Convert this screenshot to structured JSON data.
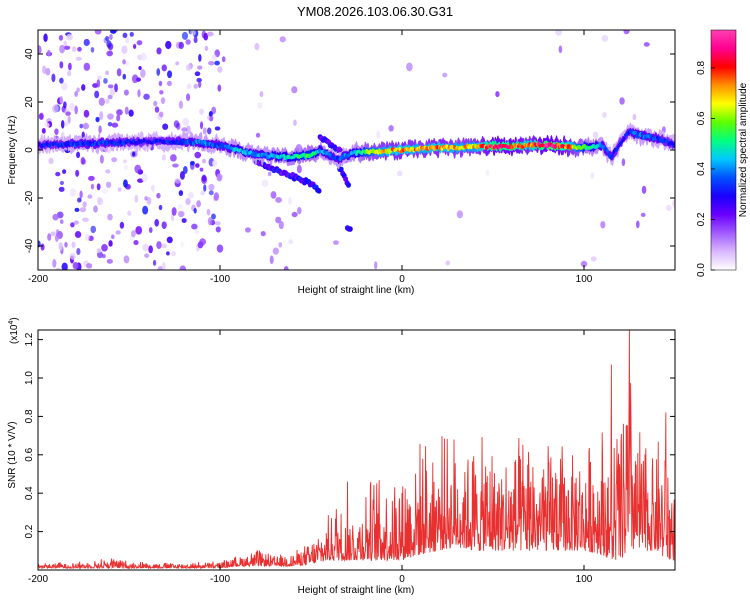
{
  "title": "YM08.2026.103.06.30.G31",
  "colors": {
    "snr_line": "#e83030",
    "colorbar_stops": [
      "#ffffff",
      "#d9b8ff",
      "#a15cff",
      "#6a00ff",
      "#1a00ff",
      "#0050ff",
      "#00c8ff",
      "#00ff80",
      "#5cff00",
      "#ffff00",
      "#ff9000",
      "#ff0000",
      "#ff0090",
      "#ff40b0"
    ]
  },
  "chart_data": [
    {
      "type": "heatmap",
      "title": "YM08.2026.103.06.30.G31",
      "xlabel": "Height of straight line (km)",
      "ylabel": "Frequency (Hz)",
      "xlim": [
        -200,
        150
      ],
      "ylim": [
        -50,
        50
      ],
      "xticks": [
        -200,
        -100,
        0,
        100
      ],
      "yticks": [
        -40,
        -20,
        0,
        20,
        40
      ],
      "colorbar": {
        "label": "Normalized spectral amplitude",
        "range": [
          0,
          0.95
        ],
        "ticks": [
          "0.0",
          "0.2",
          "0.4",
          "0.6",
          "0.8"
        ]
      },
      "ridge": {
        "description": "main spectral ridge: frequency (Hz) vs height (km)",
        "x": [
          -200,
          -180,
          -160,
          -140,
          -120,
          -110,
          -100,
          -90,
          -80,
          -70,
          -60,
          -50,
          -45,
          -40,
          -35,
          -30,
          -25,
          -20,
          -10,
          0,
          10,
          20,
          30,
          40,
          50,
          60,
          70,
          80,
          90,
          100,
          110,
          115,
          120,
          125,
          130,
          140,
          150
        ],
        "y": [
          2,
          2.5,
          3,
          3.5,
          3.5,
          3,
          2,
          0,
          -2,
          -2.5,
          -3,
          -2,
          0,
          -2,
          -4,
          -2,
          -1,
          -1,
          -0.5,
          0,
          0.5,
          1,
          1,
          1.5,
          1.5,
          1.5,
          2,
          2,
          1.5,
          1,
          2,
          -3,
          3,
          8,
          6,
          5,
          2
        ],
        "amplitude": [
          0.3,
          0.35,
          0.35,
          0.3,
          0.35,
          0.4,
          0.35,
          0.45,
          0.4,
          0.45,
          0.5,
          0.55,
          0.45,
          0.4,
          0.35,
          0.4,
          0.45,
          0.6,
          0.7,
          0.75,
          0.7,
          0.75,
          0.7,
          0.7,
          0.85,
          0.85,
          0.75,
          0.9,
          0.8,
          0.55,
          0.4,
          0.35,
          0.3,
          0.35,
          0.4,
          0.35,
          0.3
        ]
      },
      "side_branches": [
        {
          "x": [
            -80,
            -70,
            -60,
            -50,
            -45
          ],
          "y": [
            -5,
            -8,
            -11,
            -14,
            -17
          ]
        },
        {
          "x": [
            -45,
            -40,
            -35,
            -30
          ],
          "y": [
            5,
            3,
            0,
            -4
          ]
        },
        {
          "x": [
            -35,
            -32,
            -29
          ],
          "y": [
            -6,
            -11,
            -15
          ]
        },
        {
          "x": [
            -30,
            -28
          ],
          "y": [
            -32,
            -34
          ]
        }
      ]
    },
    {
      "type": "line",
      "xlabel": "Height of straight line (km)",
      "ylabel": "SNR (10 * V/V)",
      "y_multiplier": "(x10",
      "y_multiplier_exp": "4",
      "y_multiplier_close": ")",
      "xlim": [
        -200,
        150
      ],
      "ylim": [
        0,
        1.25
      ],
      "xticks": [
        -200,
        -100,
        0,
        100
      ],
      "yticks": [
        "0.2",
        "0.4",
        "0.6",
        "0.8",
        "1.0",
        "1.2"
      ],
      "series": [
        {
          "name": "SNR",
          "envelope_x": [
            -200,
            -170,
            -160,
            -150,
            -120,
            -100,
            -90,
            -80,
            -70,
            -60,
            -50,
            -40,
            -35,
            -30,
            -25,
            -20,
            -10,
            0,
            10,
            20,
            30,
            40,
            50,
            60,
            70,
            80,
            90,
            100,
            110,
            115,
            120,
            125,
            130,
            135,
            140,
            145,
            150
          ],
          "envelope_max": [
            0.04,
            0.05,
            0.08,
            0.05,
            0.04,
            0.05,
            0.08,
            0.12,
            0.08,
            0.1,
            0.16,
            0.3,
            0.45,
            0.3,
            0.35,
            0.5,
            0.55,
            0.6,
            0.7,
            0.75,
            0.75,
            0.72,
            0.72,
            0.7,
            0.75,
            0.72,
            0.72,
            0.65,
            0.9,
            0.7,
            1.05,
            1.25,
            0.85,
            0.72,
            0.8,
            0.72,
            0.6
          ],
          "envelope_min": [
            0.01,
            0.01,
            0.01,
            0.01,
            0.01,
            0.01,
            0.02,
            0.02,
            0.02,
            0.02,
            0.03,
            0.05,
            0.05,
            0.05,
            0.05,
            0.05,
            0.05,
            0.05,
            0.08,
            0.1,
            0.12,
            0.1,
            0.1,
            0.1,
            0.1,
            0.1,
            0.1,
            0.1,
            0.08,
            0.05,
            0.05,
            0.1,
            0.1,
            0.1,
            0.1,
            0.05,
            0.05
          ],
          "peaks": [
            {
              "x": -30,
              "y": 0.46
            },
            {
              "x": 115,
              "y": 1.07
            },
            {
              "x": 125,
              "y": 1.25
            },
            {
              "x": 145,
              "y": 0.82
            }
          ]
        }
      ]
    }
  ]
}
